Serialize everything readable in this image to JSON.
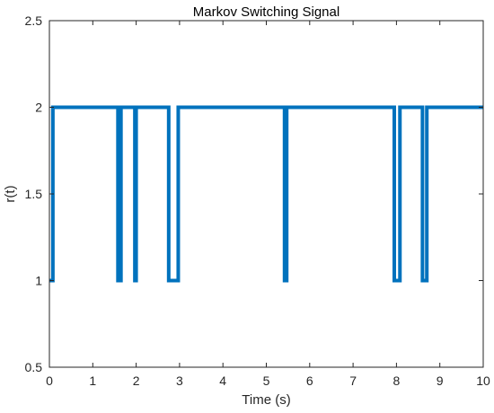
{
  "chart_data": {
    "type": "line",
    "title": "Markov Switching Signal",
    "xlabel": "Time (s)",
    "ylabel": "r(t)",
    "xlim": [
      0,
      10
    ],
    "ylim": [
      0.5,
      2.5
    ],
    "xticks": [
      0,
      1,
      2,
      3,
      4,
      5,
      6,
      7,
      8,
      9,
      10
    ],
    "yticks": [
      0.5,
      1,
      1.5,
      2,
      2.5
    ],
    "xtick_labels": [
      "0",
      "1",
      "2",
      "3",
      "4",
      "5",
      "6",
      "7",
      "8",
      "9",
      "10"
    ],
    "ytick_labels": [
      "0.5",
      "1",
      "1.5",
      "2",
      "2.5"
    ],
    "grid": false,
    "step": true,
    "line_color": "#0072BD",
    "series": [
      {
        "x": [
          0,
          0.08,
          1.58,
          1.6,
          1.62,
          1.65,
          1.97,
          2.0,
          2.75,
          2.97,
          5.42,
          5.47,
          7.95,
          8.08,
          8.6,
          8.7,
          10
        ],
        "y": [
          1,
          2,
          1,
          2,
          1,
          2,
          1,
          2,
          1,
          2,
          1,
          2,
          1,
          2,
          1,
          2,
          2
        ]
      }
    ]
  }
}
